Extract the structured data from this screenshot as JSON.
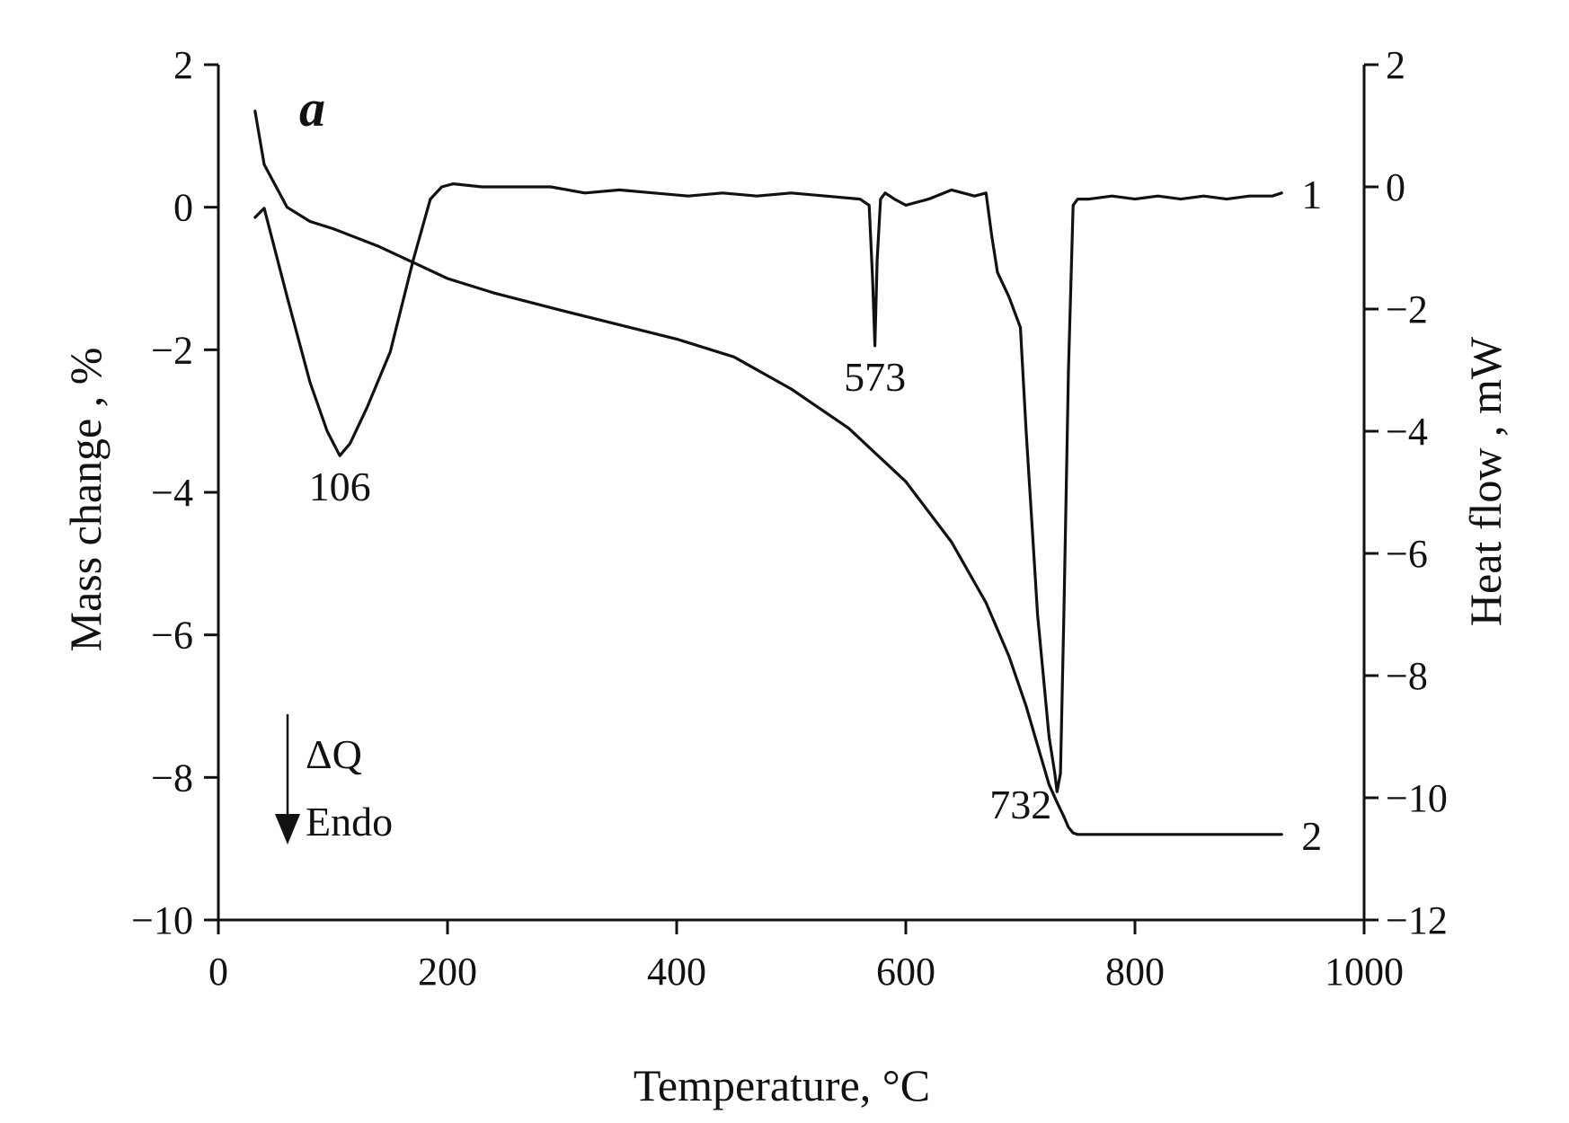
{
  "chart_data": {
    "type": "line",
    "panel_label": "a",
    "xlabel": "Temperature, °C",
    "ylabel_left": "Mass change , %",
    "ylabel_right": "Heat flow , mW",
    "xlim": [
      0,
      1000
    ],
    "ylim_left": [
      -10,
      2
    ],
    "ylim_right": [
      -12,
      2
    ],
    "x_ticks": [
      0,
      200,
      400,
      600,
      800,
      1000
    ],
    "x_tick_labels": [
      "0",
      "200",
      "400",
      "600",
      "800",
      "1000"
    ],
    "y_left_ticks": [
      2,
      0,
      -2,
      -4,
      -6,
      -8,
      -10
    ],
    "y_left_tick_labels": [
      "2",
      "0",
      "−2",
      "−4",
      "−6",
      "−8",
      "−10"
    ],
    "y_right_ticks": [
      2,
      0,
      -2,
      -4,
      -6,
      -8,
      -10,
      -12
    ],
    "y_right_tick_labels": [
      "2",
      "0",
      "−2",
      "−4",
      "−6",
      "−8",
      "−10",
      "−12"
    ],
    "grid": false,
    "legend": "none",
    "series": [
      {
        "name": "1",
        "axis": "right",
        "x": [
          32,
          40,
          60,
          80,
          95,
          106,
          115,
          130,
          150,
          170,
          185,
          195,
          205,
          230,
          260,
          290,
          320,
          350,
          380,
          410,
          440,
          470,
          500,
          530,
          560,
          568,
          571,
          573,
          575,
          578,
          582,
          590,
          600,
          620,
          640,
          660,
          670,
          675,
          680,
          690,
          700,
          705,
          710,
          715,
          720,
          725,
          730,
          732,
          735,
          738,
          742,
          746,
          750,
          760,
          780,
          800,
          820,
          840,
          860,
          880,
          900,
          920,
          928
        ],
        "values": [
          -0.5,
          -0.35,
          -1.8,
          -3.2,
          -4.0,
          -4.4,
          -4.2,
          -3.6,
          -2.7,
          -1.2,
          -0.2,
          0.0,
          0.05,
          0.0,
          0.0,
          0.0,
          -0.1,
          -0.05,
          -0.1,
          -0.15,
          -0.1,
          -0.15,
          -0.1,
          -0.15,
          -0.2,
          -0.3,
          -1.5,
          -2.6,
          -1.2,
          -0.2,
          -0.1,
          -0.2,
          -0.3,
          -0.2,
          -0.05,
          -0.15,
          -0.1,
          -0.8,
          -1.4,
          -1.8,
          -2.3,
          -4.0,
          -5.5,
          -7.0,
          -8.0,
          -9.0,
          -9.6,
          -9.9,
          -9.6,
          -7.0,
          -3.0,
          -0.3,
          -0.2,
          -0.2,
          -0.15,
          -0.2,
          -0.15,
          -0.2,
          -0.15,
          -0.2,
          -0.15,
          -0.15,
          -0.1
        ]
      },
      {
        "name": "2",
        "axis": "left",
        "x": [
          32,
          40,
          60,
          80,
          100,
          140,
          180,
          200,
          240,
          300,
          350,
          400,
          450,
          500,
          550,
          600,
          640,
          670,
          690,
          705,
          715,
          725,
          732,
          738,
          742,
          746,
          750,
          760,
          800,
          850,
          900,
          928
        ],
        "values": [
          1.35,
          0.6,
          0.0,
          -0.2,
          -0.3,
          -0.55,
          -0.85,
          -1.0,
          -1.2,
          -1.45,
          -1.65,
          -1.85,
          -2.1,
          -2.55,
          -3.1,
          -3.85,
          -4.7,
          -5.55,
          -6.3,
          -7.0,
          -7.55,
          -8.1,
          -8.35,
          -8.55,
          -8.7,
          -8.78,
          -8.8,
          -8.8,
          -8.8,
          -8.8,
          -8.8,
          -8.8
        ]
      }
    ],
    "annotations": [
      {
        "text": "106",
        "x": 106,
        "y": -4.4,
        "axis": "right",
        "anchor": "below"
      },
      {
        "text": "573",
        "x": 573,
        "y": -2.6,
        "axis": "right",
        "anchor": "below"
      },
      {
        "text": "732",
        "x": 732,
        "y": -9.9,
        "axis": "right",
        "anchor": "below-left"
      },
      {
        "text": "1",
        "x": 928,
        "y": -0.1,
        "axis": "right",
        "anchor": "right"
      },
      {
        "text": "2",
        "x": 928,
        "y": -8.8,
        "axis": "left",
        "anchor": "right"
      }
    ],
    "endo_indicator": {
      "line1": "ΔQ",
      "line2": "Endo"
    }
  }
}
